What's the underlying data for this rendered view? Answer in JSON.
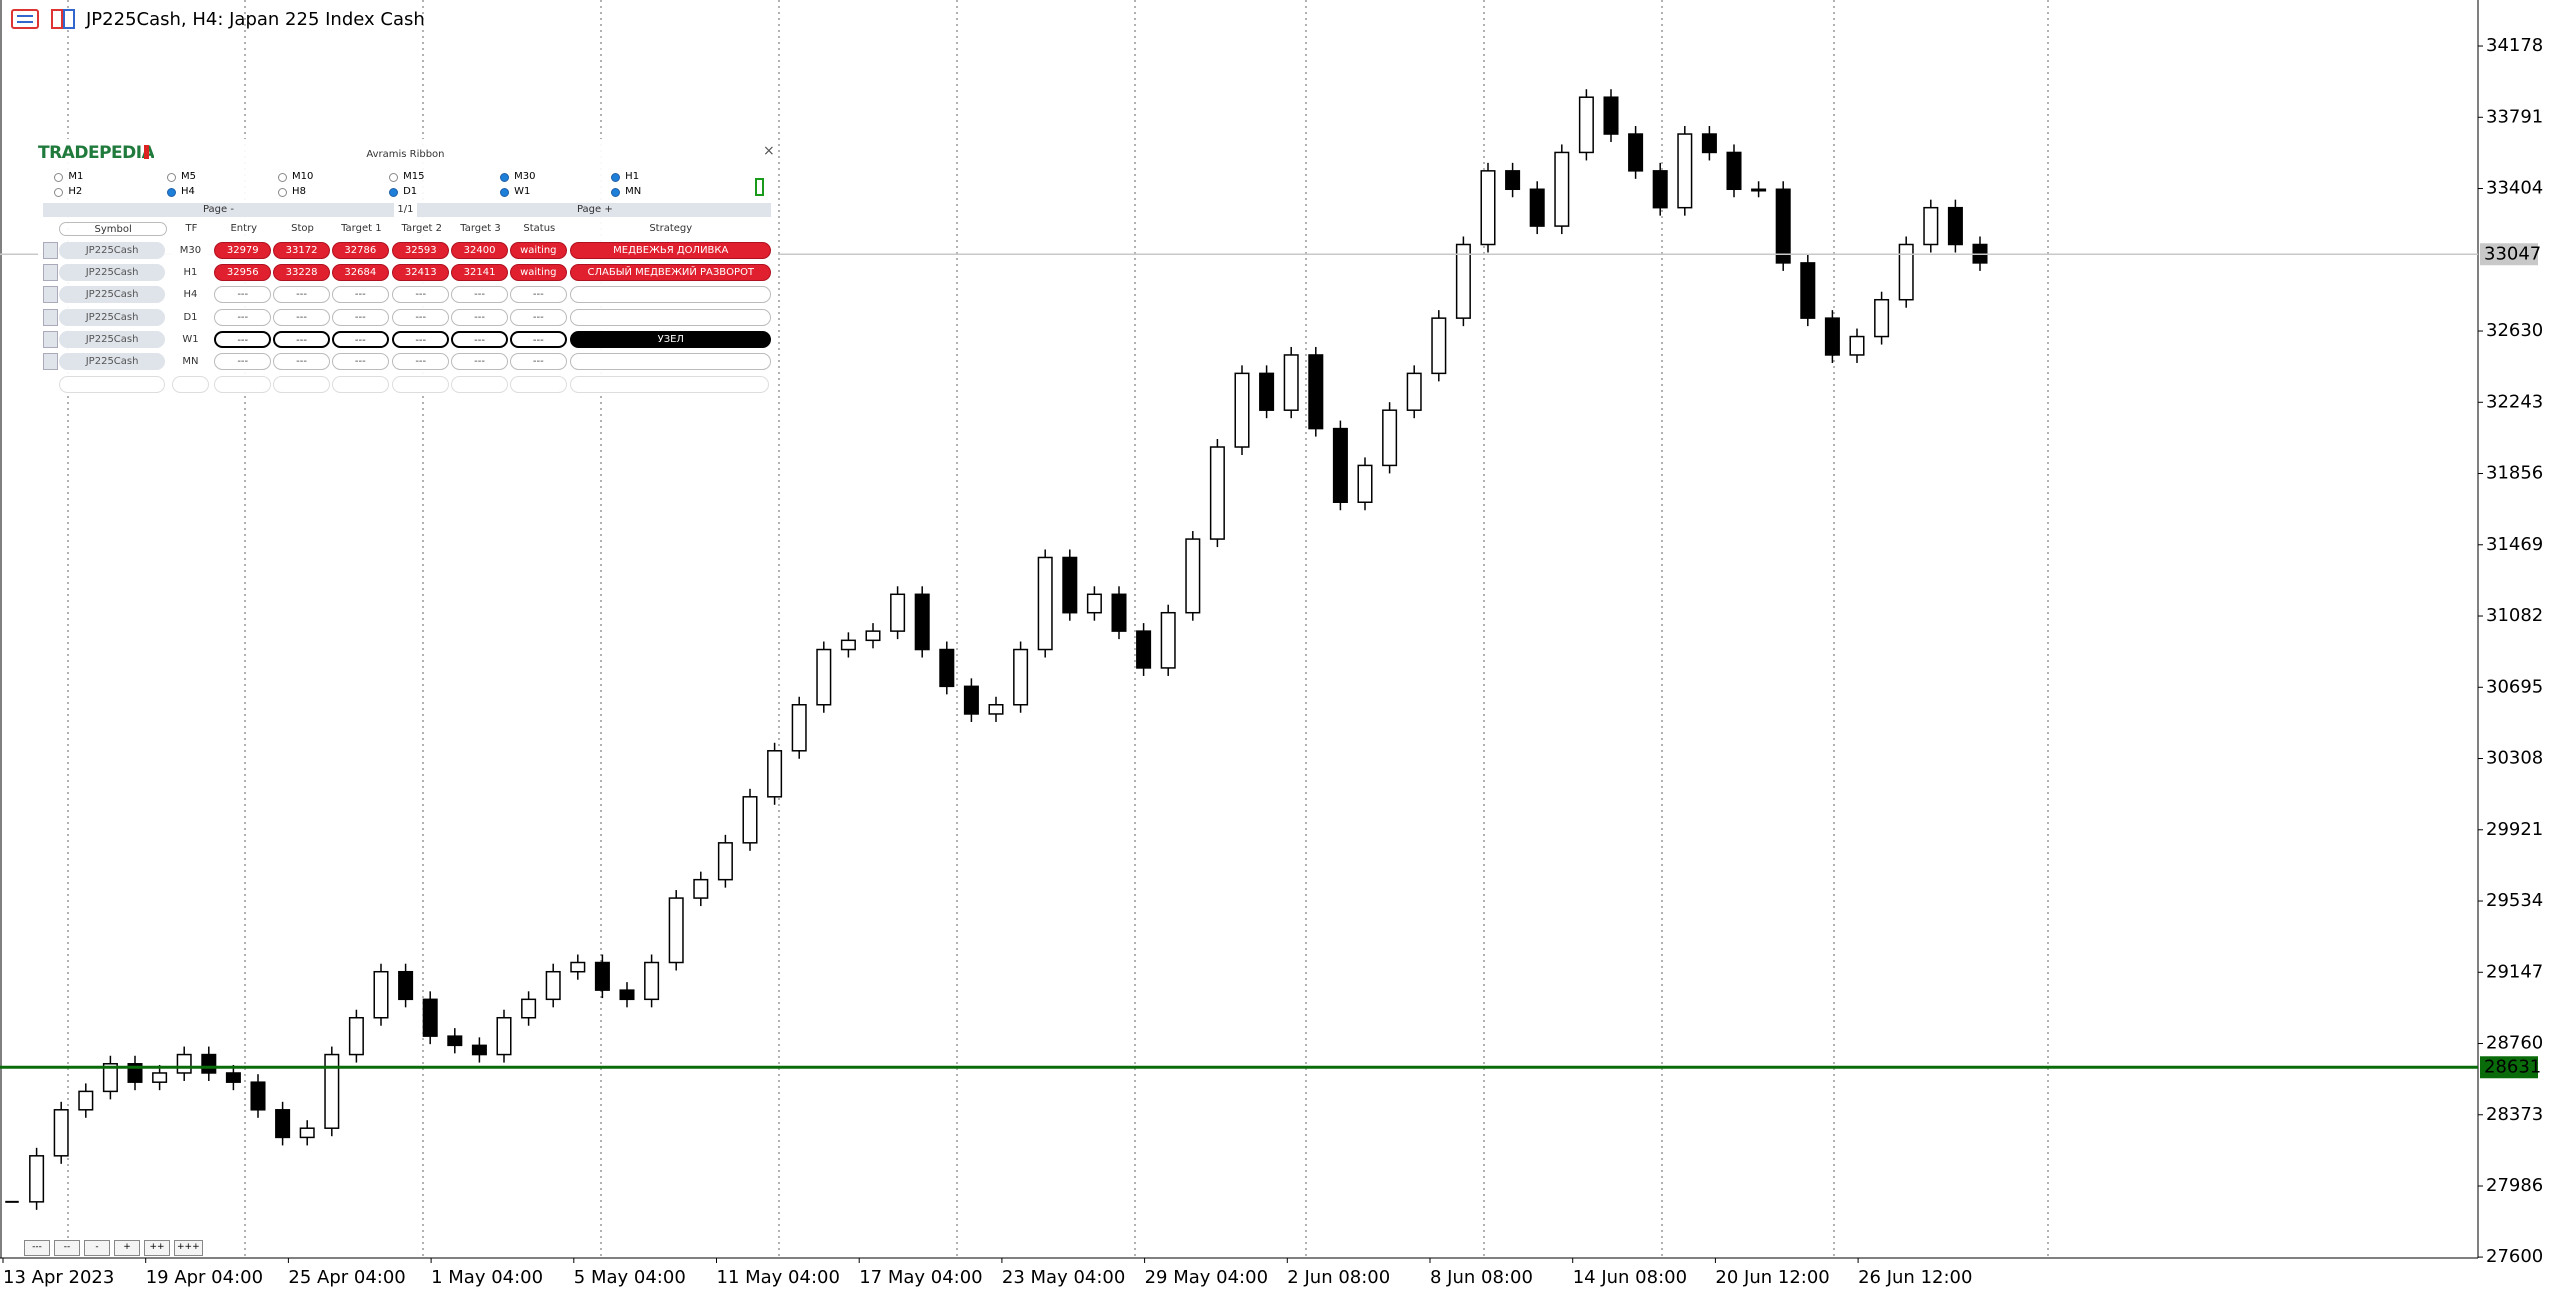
{
  "window": {
    "title": "JP225Cash, H4:  Japan 225 Index Cash"
  },
  "panel": {
    "brand": "TRADEPEDIA",
    "title": "Avramis Ribbon",
    "close": "×",
    "timeframes": [
      {
        "label": "M1",
        "checked": false
      },
      {
        "label": "M5",
        "checked": false
      },
      {
        "label": "M10",
        "checked": false
      },
      {
        "label": "M15",
        "checked": false
      },
      {
        "label": "M30",
        "checked": true
      },
      {
        "label": "H1",
        "checked": true
      },
      {
        "label": "H2",
        "checked": false
      },
      {
        "label": "H4",
        "checked": true
      },
      {
        "label": "H8",
        "checked": false
      },
      {
        "label": "D1",
        "checked": true
      },
      {
        "label": "W1",
        "checked": true
      },
      {
        "label": "MN",
        "checked": true
      }
    ],
    "page_prev": "Page -",
    "page": "1/1",
    "page_next": "Page +",
    "columns": [
      "Symbol",
      "TF",
      "Entry",
      "Stop",
      "Target 1",
      "Target 2",
      "Target 3",
      "Status",
      "Strategy"
    ],
    "rows": [
      {
        "style": "sell",
        "cells": [
          "JP225Cash",
          "M30",
          "32979",
          "33172",
          "32786",
          "32593",
          "32400",
          "waiting"
        ],
        "strategy": "МЕДВЕЖЬЯ ДОЛИВКА"
      },
      {
        "style": "sell",
        "cells": [
          "JP225Cash",
          "H1",
          "32956",
          "33228",
          "32684",
          "32413",
          "32141",
          "waiting"
        ],
        "strategy": "СЛАБЫЙ МЕДВЕЖИЙ РАЗВОРОТ"
      },
      {
        "style": "blank",
        "cells": [
          "JP225Cash",
          "H4",
          "---",
          "---",
          "---",
          "---",
          "---",
          "---"
        ]
      },
      {
        "style": "blank",
        "cells": [
          "JP225Cash",
          "D1",
          "---",
          "---",
          "---",
          "---",
          "---",
          "---"
        ]
      },
      {
        "style": "node",
        "cells": [
          "JP225Cash",
          "W1",
          "---",
          "---",
          "---",
          "---",
          "---",
          "---"
        ],
        "strategy": "УЗЕЛ"
      },
      {
        "style": "blank",
        "cells": [
          "JP225Cash",
          "MN",
          "---",
          "---",
          "---",
          "---",
          "---",
          "---"
        ]
      }
    ]
  },
  "zoom_buttons": [
    "---",
    "--",
    "-",
    "+",
    "++",
    "+++"
  ],
  "chart_data": {
    "type": "candlestick",
    "values": [
      27900,
      28150,
      28400,
      28500,
      28650,
      28550,
      28600,
      28700,
      28600,
      28550,
      28400,
      28250,
      28300,
      28700,
      28900,
      29150,
      29000,
      28800,
      28750,
      28700,
      28900,
      29000,
      29150,
      29200,
      29050,
      29000,
      29200,
      29550,
      29650,
      29850,
      30100,
      30350,
      30600,
      30900,
      30950,
      31000,
      31200,
      30900,
      30700,
      30550,
      30600,
      30900,
      31400,
      31100,
      31200,
      31000,
      30800,
      31100,
      31500,
      32000,
      32400,
      32200,
      32500,
      32100,
      31700,
      31900,
      32200,
      32400,
      32700,
      33100,
      33500,
      33400,
      33200,
      33600,
      33900,
      33700,
      33500,
      33300,
      33700,
      33600,
      33400,
      33400,
      33000,
      32700,
      32500,
      32600,
      32800,
      33100,
      33300,
      33100,
      33000
    ],
    "ylim": [
      27595,
      34428
    ],
    "yticks": [
      34178,
      33791,
      33404,
      32630,
      32243,
      31856,
      31469,
      31082,
      30695,
      30308,
      29921,
      29534,
      29147,
      28760,
      28373,
      27986,
      27600
    ],
    "x_labels": [
      "13 Apr 2023",
      "19 Apr 04:00",
      "25 Apr 04:00",
      "1 May 04:00",
      "5 May 04:00",
      "11 May 04:00",
      "17 May 04:00",
      "23 May 04:00",
      "29 May 04:00",
      "2 Jun 08:00",
      "8 Jun 08:00",
      "14 Jun 08:00",
      "20 Jun 12:00",
      "26 Jun 12:00"
    ],
    "levels": [
      {
        "value": 33047,
        "color": "#c8c8c8",
        "text_color": "#ffffff"
      },
      {
        "value": 28631,
        "color": "#0a6b0a",
        "text_color": "#ffffff"
      }
    ]
  }
}
